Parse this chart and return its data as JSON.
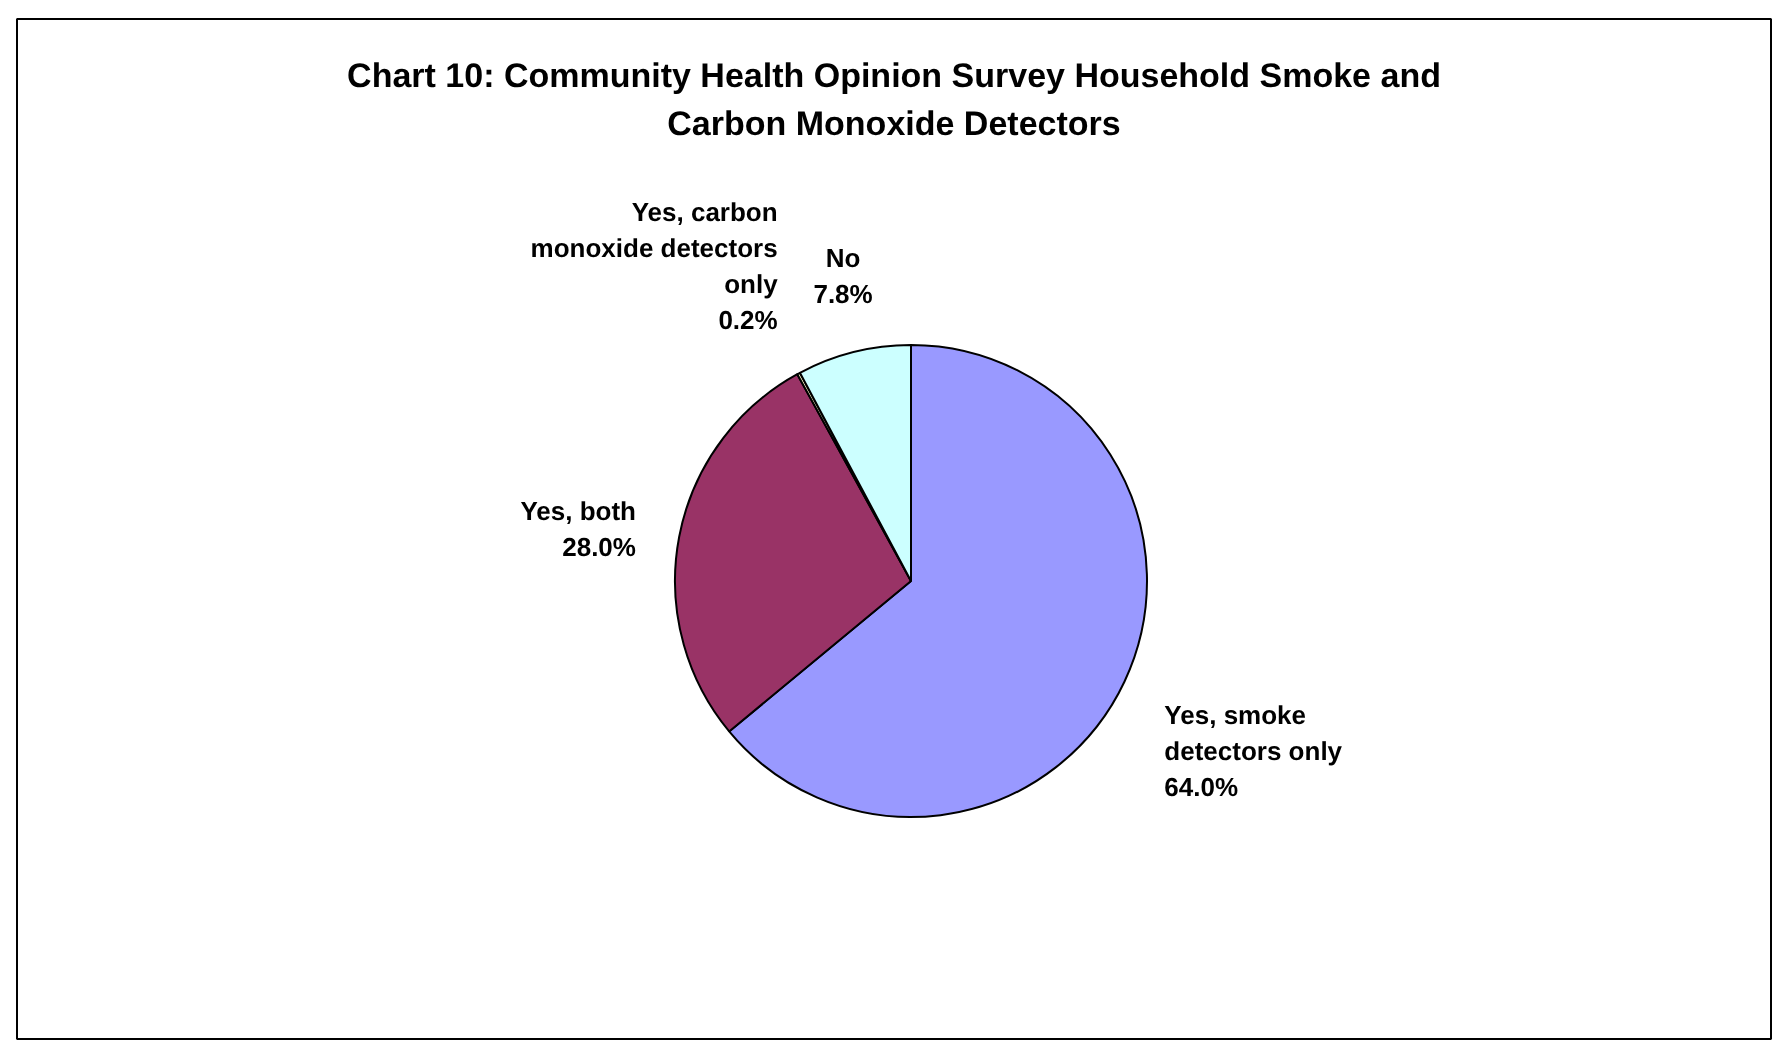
{
  "chart_data": {
    "type": "pie",
    "title": "Chart 10: Community Health Opinion Survey Household Smoke and Carbon Monoxide Detectors",
    "categories": [
      "Yes, smoke detectors only",
      "Yes, both",
      "Yes, carbon monoxide detectors only",
      "No"
    ],
    "values": [
      64.0,
      28.0,
      0.2,
      7.8
    ],
    "colors": [
      "#9999ff",
      "#993366",
      "#ffffcc",
      "#ccffff"
    ],
    "value_labels": [
      "64.0%",
      "28.0%",
      "0.2%",
      "7.8%"
    ]
  }
}
